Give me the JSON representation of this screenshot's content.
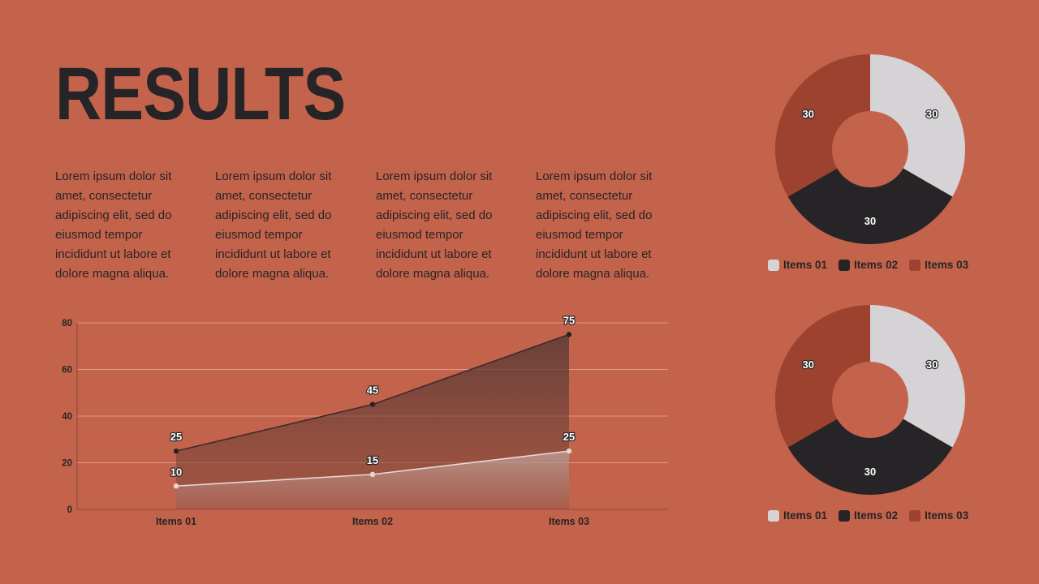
{
  "title": "RESULTS",
  "columns": [
    "Lorem ipsum dolor sit amet, consectetur adipiscing elit, sed do eiusmod tempor incididunt ut labore et dolore magna aliqua.",
    "Lorem ipsum dolor sit amet, consectetur adipiscing elit, sed do eiusmod tempor incididunt ut labore et dolore magna aliqua.",
    "Lorem ipsum dolor sit amet, consectetur adipiscing elit, sed do eiusmod tempor incididunt ut labore et dolore magna aliqua.",
    "Lorem ipsum dolor sit amet, consectetur adipiscing elit, sed do eiusmod tempor incididunt ut labore et dolore magna aliqua."
  ],
  "colors": {
    "background": "#c4634b",
    "dark": "#262426",
    "light": "#d6d3d6",
    "rust": "#9c422f"
  },
  "chart_data": [
    {
      "type": "area",
      "categories": [
        "Items 01",
        "Items 02",
        "Items 03"
      ],
      "series": [
        {
          "values": [
            25,
            45,
            75
          ],
          "color": "#262426"
        },
        {
          "values": [
            10,
            15,
            25
          ],
          "color": "#d6d3d6"
        }
      ],
      "ylim": [
        0,
        80
      ],
      "yticks": [
        0,
        20,
        40,
        60,
        80
      ],
      "grid": true,
      "data_labels": true
    },
    {
      "type": "pie",
      "donut": true,
      "labels": [
        "Items 01",
        "Items 02",
        "Items 03"
      ],
      "values": [
        30,
        30,
        30
      ],
      "colors": [
        "#d6d3d6",
        "#262426",
        "#9c422f"
      ],
      "legend": "bottom"
    },
    {
      "type": "pie",
      "donut": true,
      "labels": [
        "Items 01",
        "Items 02",
        "Items 03"
      ],
      "values": [
        30,
        30,
        30
      ],
      "colors": [
        "#d6d3d6",
        "#262426",
        "#9c422f"
      ],
      "legend": "bottom"
    }
  ]
}
